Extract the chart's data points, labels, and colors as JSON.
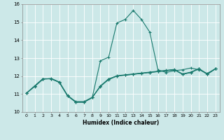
{
  "xlabel": "Humidex (Indice chaleur)",
  "background_color": "#cce8e8",
  "grid_color": "#ffffff",
  "line_color": "#1a7a6e",
  "xlim": [
    -0.5,
    23.5
  ],
  "ylim": [
    10.0,
    16.0
  ],
  "ytick_min": 10,
  "ytick_max": 16,
  "xticks": [
    0,
    1,
    2,
    3,
    4,
    5,
    6,
    7,
    8,
    9,
    10,
    11,
    12,
    13,
    14,
    15,
    16,
    17,
    18,
    19,
    20,
    21,
    22,
    23
  ],
  "series1_x": [
    0,
    1,
    2,
    3,
    4,
    5,
    6,
    7,
    8,
    9,
    10,
    11,
    12,
    13,
    14,
    15,
    16,
    17,
    18,
    19,
    20,
    21,
    22,
    23
  ],
  "series1_y": [
    11.05,
    11.45,
    11.85,
    11.85,
    11.65,
    10.9,
    10.55,
    10.55,
    10.8,
    11.45,
    11.8,
    12.0,
    12.05,
    12.1,
    12.15,
    12.2,
    12.25,
    12.3,
    12.35,
    12.1,
    12.2,
    12.4,
    12.1,
    12.4
  ],
  "series2_x": [
    0,
    1,
    2,
    3,
    4,
    5,
    6,
    7,
    8,
    9,
    10,
    11,
    12,
    13,
    14,
    15,
    16,
    17,
    18,
    19,
    20,
    21,
    22,
    23
  ],
  "series2_y": [
    11.05,
    11.45,
    11.85,
    11.85,
    11.65,
    10.9,
    10.55,
    10.55,
    10.8,
    12.85,
    13.05,
    14.95,
    15.15,
    15.65,
    15.15,
    14.45,
    12.35,
    12.2,
    12.3,
    12.35,
    12.45,
    12.35,
    12.15,
    12.4
  ],
  "series3_x": [
    0,
    1,
    2,
    3,
    4,
    5,
    6,
    7,
    8,
    9,
    10,
    11,
    12,
    13,
    14,
    15,
    16,
    17,
    18,
    19,
    20,
    21,
    22,
    23
  ],
  "series3_y": [
    11.05,
    11.45,
    11.85,
    11.85,
    11.65,
    10.9,
    10.55,
    10.55,
    10.8,
    11.45,
    11.85,
    12.0,
    12.05,
    12.1,
    12.15,
    12.2,
    12.25,
    12.3,
    12.35,
    12.1,
    12.2,
    12.4,
    12.1,
    12.4
  ],
  "series4_x": [
    0,
    1,
    2,
    3,
    4,
    5,
    6,
    7,
    8,
    9,
    10,
    11,
    12,
    13,
    14,
    15,
    16,
    17,
    18,
    19,
    20,
    21,
    22,
    23
  ],
  "series4_y": [
    11.05,
    11.42,
    11.82,
    11.87,
    11.67,
    10.92,
    10.58,
    10.58,
    10.82,
    11.42,
    11.82,
    12.02,
    12.07,
    12.12,
    12.17,
    12.22,
    12.27,
    12.32,
    12.37,
    12.12,
    12.22,
    12.42,
    12.12,
    12.42
  ]
}
